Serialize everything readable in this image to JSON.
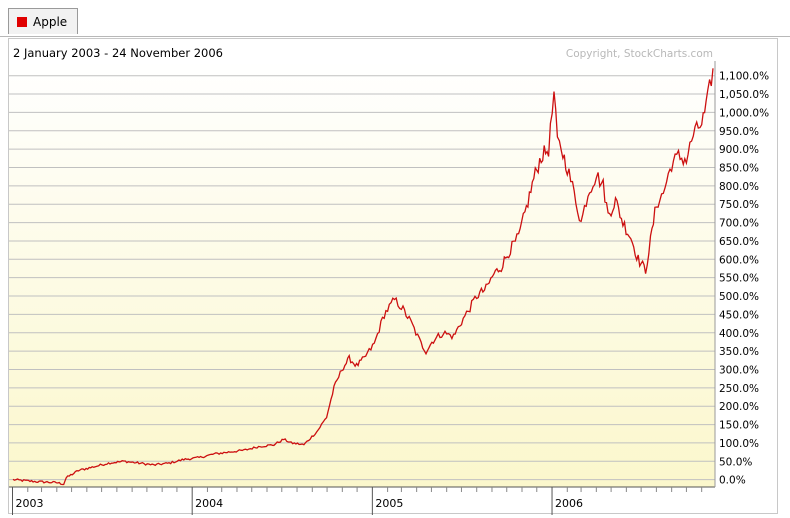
{
  "legend": {
    "tab_label": "Apple",
    "swatch_color": "#e00000"
  },
  "header": {
    "date_range": "2 January 2003 - 24 November 2006",
    "copyright": "Copyright, StockCharts.com"
  },
  "colors": {
    "line": "#cc1010",
    "gridline": "#c0c0c0",
    "background_top": "#ffffff",
    "background_bottom": "#fbf7cc"
  },
  "chart_data": {
    "type": "line",
    "x_unit": "date",
    "y_unit": "percent change",
    "ylim": [
      -20,
      1140
    ],
    "xlim": [
      "2003-01-02",
      "2006-11-24"
    ],
    "yticks": [
      0,
      50,
      100,
      150,
      200,
      250,
      300,
      350,
      400,
      450,
      500,
      550,
      600,
      650,
      700,
      750,
      800,
      850,
      900,
      950,
      1000,
      1050,
      1100
    ],
    "ytick_labels": [
      "0.0%",
      "50.0%",
      "100.0%",
      "150.0%",
      "200.0%",
      "250.0%",
      "300.0%",
      "350.0%",
      "400.0%",
      "450.0%",
      "500.0%",
      "550.0%",
      "600.0%",
      "650.0%",
      "700.0%",
      "750.0%",
      "800.0%",
      "850.0%",
      "900.0%",
      "950.0%",
      "1,000.0%",
      "1,050.0%",
      "1,100.0%"
    ],
    "xticks": [
      {
        "date": "2003-01-01",
        "label": "2003"
      },
      {
        "date": "2004-01-01",
        "label": "2004"
      },
      {
        "date": "2005-01-01",
        "label": "2005"
      },
      {
        "date": "2006-01-01",
        "label": "2006"
      }
    ],
    "grid": true,
    "series": [
      {
        "name": "Apple",
        "x": [
          "2003-01-02",
          "2003-02-15",
          "2003-03-31",
          "2003-04-15",
          "2003-04-20",
          "2003-05-15",
          "2003-06-15",
          "2003-07-15",
          "2003-08-15",
          "2003-09-15",
          "2003-10-15",
          "2003-11-15",
          "2003-12-15",
          "2004-01-15",
          "2004-02-15",
          "2004-03-15",
          "2004-04-15",
          "2004-05-15",
          "2004-06-15",
          "2004-07-05",
          "2004-07-20",
          "2004-08-15",
          "2004-09-10",
          "2004-09-30",
          "2004-10-15",
          "2004-10-31",
          "2004-11-15",
          "2004-11-30",
          "2004-12-15",
          "2005-01-05",
          "2005-01-25",
          "2005-02-15",
          "2005-03-01",
          "2005-03-20",
          "2005-04-10",
          "2005-04-20",
          "2005-05-05",
          "2005-05-25",
          "2005-06-15",
          "2005-07-01",
          "2005-07-15",
          "2005-08-01",
          "2005-08-20",
          "2005-09-05",
          "2005-09-20",
          "2005-10-05",
          "2005-10-25",
          "2005-11-10",
          "2005-11-25",
          "2005-12-10",
          "2005-12-25",
          "2006-01-05",
          "2006-01-12",
          "2006-01-20",
          "2006-02-01",
          "2006-02-15",
          "2006-03-01",
          "2006-03-15",
          "2006-04-01",
          "2006-04-15",
          "2006-04-25",
          "2006-05-10",
          "2006-05-25",
          "2006-06-10",
          "2006-06-25",
          "2006-07-10",
          "2006-07-20",
          "2006-08-01",
          "2006-08-15",
          "2006-09-01",
          "2006-09-15",
          "2006-10-01",
          "2006-10-15",
          "2006-11-01",
          "2006-11-10",
          "2006-11-24"
        ],
        "y": [
          0,
          -5,
          -8,
          -12,
          5,
          25,
          35,
          45,
          50,
          45,
          40,
          45,
          55,
          60,
          70,
          75,
          80,
          90,
          95,
          110,
          100,
          95,
          130,
          170,
          250,
          300,
          330,
          310,
          330,
          370,
          450,
          490,
          470,
          430,
          370,
          350,
          380,
          400,
          390,
          430,
          460,
          500,
          520,
          560,
          580,
          620,
          660,
          740,
          820,
          880,
          900,
          1050,
          920,
          900,
          850,
          780,
          700,
          780,
          830,
          800,
          720,
          760,
          700,
          660,
          600,
          570,
          650,
          750,
          780,
          860,
          880,
          870,
          940,
          970,
          1010,
          1120
        ]
      }
    ]
  }
}
